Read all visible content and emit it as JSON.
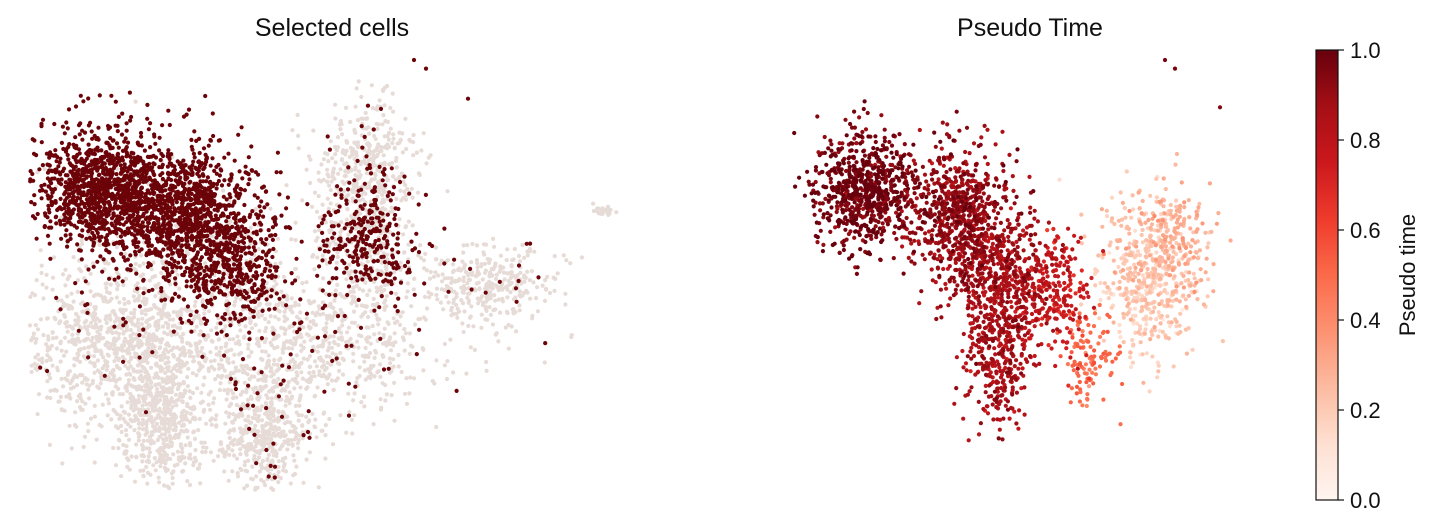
{
  "chart_data": [
    {
      "type": "scatter",
      "title": "Selected cells",
      "axes_visible": false,
      "colors": {
        "selected": "#6b0309",
        "unselected": "#e6dbd6"
      },
      "point_groups": [
        {
          "x": 0.12,
          "y": 0.7,
          "sx": 0.055,
          "sy": 0.07,
          "weight": 0.16,
          "selected_frac": 0.97
        },
        {
          "x": 0.26,
          "y": 0.64,
          "sx": 0.055,
          "sy": 0.085,
          "weight": 0.16,
          "selected_frac": 0.95
        },
        {
          "x": 0.34,
          "y": 0.52,
          "sx": 0.045,
          "sy": 0.07,
          "weight": 0.07,
          "selected_frac": 0.75
        },
        {
          "x": 0.56,
          "y": 0.58,
          "sx": 0.04,
          "sy": 0.08,
          "weight": 0.08,
          "selected_frac": 0.5
        },
        {
          "x": 0.56,
          "y": 0.76,
          "sx": 0.045,
          "sy": 0.07,
          "weight": 0.05,
          "selected_frac": 0.05
        },
        {
          "x": 0.15,
          "y": 0.34,
          "sx": 0.09,
          "sy": 0.1,
          "weight": 0.15,
          "selected_frac": 0.02
        },
        {
          "x": 0.48,
          "y": 0.34,
          "sx": 0.1,
          "sy": 0.08,
          "weight": 0.1,
          "selected_frac": 0.06
        },
        {
          "x": 0.22,
          "y": 0.16,
          "sx": 0.035,
          "sy": 0.08,
          "weight": 0.07,
          "selected_frac": 0.0
        },
        {
          "x": 0.39,
          "y": 0.14,
          "sx": 0.04,
          "sy": 0.08,
          "weight": 0.07,
          "selected_frac": 0.05
        },
        {
          "x": 0.76,
          "y": 0.47,
          "sx": 0.06,
          "sy": 0.05,
          "weight": 0.05,
          "selected_frac": 0.05
        },
        {
          "x": 0.96,
          "y": 0.65,
          "sx": 0.01,
          "sy": 0.005,
          "weight": 0.004,
          "selected_frac": 0.0
        }
      ]
    },
    {
      "type": "scatter",
      "title": "Pseudo Time",
      "axes_visible": false,
      "colormap": "Reds",
      "color_range": [
        0,
        1
      ],
      "point_groups": [
        {
          "x": 0.17,
          "y": 0.7,
          "sx": 0.05,
          "sy": 0.065,
          "weight": 0.2,
          "pseudotime": 0.97
        },
        {
          "x": 0.36,
          "y": 0.64,
          "sx": 0.05,
          "sy": 0.08,
          "weight": 0.2,
          "pseudotime": 0.9
        },
        {
          "x": 0.44,
          "y": 0.48,
          "sx": 0.045,
          "sy": 0.08,
          "weight": 0.15,
          "pseudotime": 0.85
        },
        {
          "x": 0.44,
          "y": 0.3,
          "sx": 0.035,
          "sy": 0.07,
          "weight": 0.07,
          "pseudotime": 0.85
        },
        {
          "x": 0.55,
          "y": 0.46,
          "sx": 0.035,
          "sy": 0.07,
          "weight": 0.06,
          "pseudotime": 0.75
        },
        {
          "x": 0.73,
          "y": 0.48,
          "sx": 0.05,
          "sy": 0.09,
          "weight": 0.12,
          "pseudotime": 0.2
        },
        {
          "x": 0.78,
          "y": 0.58,
          "sx": 0.05,
          "sy": 0.06,
          "weight": 0.06,
          "pseudotime": 0.28
        },
        {
          "x": 0.62,
          "y": 0.3,
          "sx": 0.03,
          "sy": 0.06,
          "weight": 0.03,
          "pseudotime": 0.5
        }
      ]
    }
  ],
  "colorbar": {
    "label": "Pseudo time",
    "ticks": [
      {
        "value": 0.0,
        "label": "0.0"
      },
      {
        "value": 0.2,
        "label": "0.2"
      },
      {
        "value": 0.4,
        "label": "0.4"
      },
      {
        "value": 0.6,
        "label": "0.6"
      },
      {
        "value": 0.8,
        "label": "0.8"
      },
      {
        "value": 1.0,
        "label": "1.0"
      }
    ],
    "range": [
      0,
      1
    ],
    "colormap": "Reds"
  }
}
